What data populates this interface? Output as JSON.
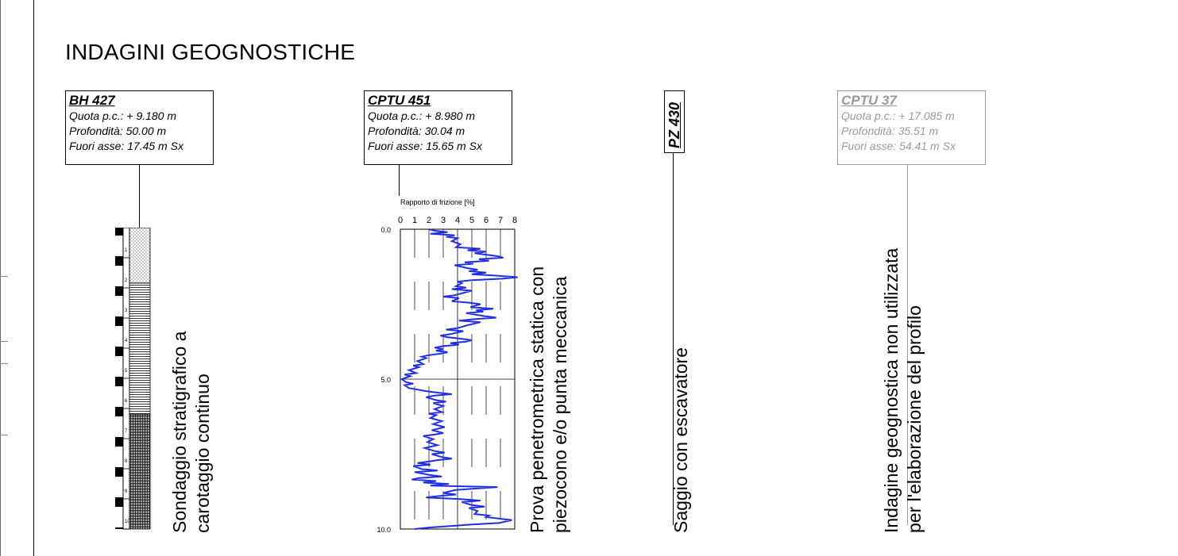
{
  "title": "INDAGINI GEOGNOSTICHE",
  "investigations": [
    {
      "id": "BH 427",
      "quota": "Quota p.c.: + 9.180 m",
      "profondita": "Profondità: 50.00 m",
      "fuori_asse": "Fuori asse: 17.45 m Sx",
      "description": [
        "Sondaggio stratigrafico a",
        "carotaggio continuo"
      ],
      "core_ticks": [
        "1",
        "2",
        "3",
        "4",
        "5",
        "6",
        "7",
        "8",
        "9",
        "10"
      ],
      "enabled": true
    },
    {
      "id": "CPTU 451",
      "quota": "Quota p.c.: + 8.980 m",
      "profondita": "Profondità: 30.04 m",
      "fuori_asse": "Fuori asse: 15.65 m Sx",
      "description": [
        "Prova penetrometrica statica con",
        "piezocono e/o punta meccanica"
      ],
      "enabled": true
    },
    {
      "id": "PZ 430",
      "description": [
        "Saggio con escavatore"
      ],
      "enabled": true
    },
    {
      "id": "CPTU 37",
      "quota": "Quota p.c.: + 17.085 m",
      "profondita": "Profondità: 35.51 m",
      "fuori_asse": "Fuori asse: 54.41 m Sx",
      "description": [
        "Indagine geognostica non utilizzata",
        "per l'elaborazione del profilo"
      ],
      "enabled": false,
      "color": "#9a9a9a"
    }
  ],
  "chart_data": {
    "type": "line",
    "title": "Rapporto di frizione [%]",
    "xlabel": "Rapporto di frizione [%]",
    "ylabel": "",
    "x_ticks": [
      "0",
      "1",
      "2",
      "3",
      "4",
      "5",
      "6",
      "7",
      "8"
    ],
    "y_ticks": [
      "0.0",
      "5.0",
      "10.0"
    ],
    "xlim": [
      0,
      8
    ],
    "ylim": [
      0,
      10
    ],
    "y_inverted": true,
    "line_color": "#1f2ee6",
    "series": [
      {
        "points": [
          [
            2.0,
            0.0
          ],
          [
            2.4,
            0.05
          ],
          [
            3.3,
            0.1
          ],
          [
            2.1,
            0.15
          ],
          [
            3.8,
            0.2
          ],
          [
            3.2,
            0.25
          ],
          [
            4.0,
            0.3
          ],
          [
            3.6,
            0.4
          ],
          [
            4.2,
            0.5
          ],
          [
            3.9,
            0.6
          ],
          [
            5.6,
            0.65
          ],
          [
            4.7,
            0.7
          ],
          [
            6.0,
            0.75
          ],
          [
            5.2,
            0.8
          ],
          [
            6.8,
            0.9
          ],
          [
            7.2,
            0.95
          ],
          [
            5.5,
            1.0
          ],
          [
            6.2,
            1.05
          ],
          [
            4.5,
            1.1
          ],
          [
            5.1,
            1.15
          ],
          [
            3.8,
            1.2
          ],
          [
            4.7,
            1.3
          ],
          [
            5.4,
            1.35
          ],
          [
            4.8,
            1.4
          ],
          [
            6.0,
            1.45
          ],
          [
            5.0,
            1.5
          ],
          [
            6.8,
            1.55
          ],
          [
            8.2,
            1.6
          ],
          [
            7.1,
            1.65
          ],
          [
            5.0,
            1.7
          ],
          [
            4.0,
            1.75
          ],
          [
            4.3,
            1.8
          ],
          [
            3.9,
            1.9
          ],
          [
            4.6,
            1.95
          ],
          [
            3.6,
            2.0
          ],
          [
            5.0,
            2.05
          ],
          [
            4.2,
            2.15
          ],
          [
            3.8,
            2.2
          ],
          [
            3.0,
            2.25
          ],
          [
            4.1,
            2.3
          ],
          [
            3.6,
            2.4
          ],
          [
            4.8,
            2.45
          ],
          [
            5.6,
            2.5
          ],
          [
            4.9,
            2.6
          ],
          [
            6.5,
            2.65
          ],
          [
            5.3,
            2.7
          ],
          [
            5.8,
            2.75
          ],
          [
            4.6,
            2.8
          ],
          [
            5.9,
            2.9
          ],
          [
            6.7,
            2.95
          ],
          [
            5.2,
            3.0
          ],
          [
            4.1,
            3.05
          ],
          [
            5.6,
            3.1
          ],
          [
            4.7,
            3.2
          ],
          [
            4.0,
            3.3
          ],
          [
            3.2,
            3.35
          ],
          [
            4.4,
            3.4
          ],
          [
            3.5,
            3.5
          ],
          [
            2.8,
            3.55
          ],
          [
            3.3,
            3.6
          ],
          [
            4.2,
            3.65
          ],
          [
            5.0,
            3.7
          ],
          [
            4.6,
            3.75
          ],
          [
            3.5,
            3.8
          ],
          [
            4.1,
            3.85
          ],
          [
            3.0,
            3.9
          ],
          [
            2.4,
            3.95
          ],
          [
            3.0,
            4.0
          ],
          [
            2.5,
            4.05
          ],
          [
            3.3,
            4.1
          ],
          [
            2.8,
            4.15
          ],
          [
            2.0,
            4.2
          ],
          [
            1.5,
            4.25
          ],
          [
            1.8,
            4.3
          ],
          [
            1.2,
            4.4
          ],
          [
            1.6,
            4.5
          ],
          [
            0.9,
            4.55
          ],
          [
            1.3,
            4.6
          ],
          [
            0.6,
            4.7
          ],
          [
            1.1,
            4.8
          ],
          [
            0.3,
            4.85
          ],
          [
            0.7,
            4.9
          ],
          [
            0.1,
            5.0
          ],
          [
            0.4,
            5.1
          ],
          [
            0.9,
            5.15
          ],
          [
            0.3,
            5.2
          ],
          [
            0.6,
            5.3
          ],
          [
            1.2,
            5.35
          ],
          [
            1.8,
            5.4
          ],
          [
            2.6,
            5.45
          ],
          [
            3.6,
            5.5
          ],
          [
            2.4,
            5.55
          ],
          [
            1.8,
            5.6
          ],
          [
            2.5,
            5.7
          ],
          [
            3.2,
            5.75
          ],
          [
            2.3,
            5.8
          ],
          [
            3.0,
            5.9
          ],
          [
            2.4,
            6.0
          ],
          [
            2.9,
            6.1
          ],
          [
            2.0,
            6.15
          ],
          [
            2.5,
            6.2
          ],
          [
            2.1,
            6.3
          ],
          [
            2.9,
            6.4
          ],
          [
            2.3,
            6.5
          ],
          [
            3.1,
            6.6
          ],
          [
            2.2,
            6.7
          ],
          [
            3.0,
            6.8
          ],
          [
            2.4,
            6.85
          ],
          [
            1.6,
            6.9
          ],
          [
            2.3,
            7.0
          ],
          [
            1.9,
            7.1
          ],
          [
            2.6,
            7.2
          ],
          [
            1.7,
            7.3
          ],
          [
            2.4,
            7.4
          ],
          [
            3.1,
            7.45
          ],
          [
            2.2,
            7.5
          ],
          [
            2.9,
            7.6
          ],
          [
            3.6,
            7.65
          ],
          [
            2.6,
            7.7
          ],
          [
            2.0,
            7.75
          ],
          [
            1.2,
            7.8
          ],
          [
            2.1,
            7.85
          ],
          [
            0.9,
            7.9
          ],
          [
            1.5,
            8.0
          ],
          [
            2.6,
            8.05
          ],
          [
            1.0,
            8.1
          ],
          [
            2.1,
            8.2
          ],
          [
            2.9,
            8.25
          ],
          [
            1.3,
            8.3
          ],
          [
            0.8,
            8.35
          ],
          [
            2.5,
            8.4
          ],
          [
            1.6,
            8.45
          ],
          [
            3.4,
            8.5
          ],
          [
            2.1,
            8.55
          ],
          [
            6.8,
            8.6
          ],
          [
            5.2,
            8.65
          ],
          [
            3.8,
            8.7
          ],
          [
            3.0,
            8.8
          ],
          [
            3.9,
            8.85
          ],
          [
            2.7,
            8.9
          ],
          [
            1.8,
            8.95
          ],
          [
            4.2,
            9.0
          ],
          [
            5.6,
            9.05
          ],
          [
            4.3,
            9.1
          ],
          [
            5.0,
            9.2
          ],
          [
            5.9,
            9.25
          ],
          [
            4.8,
            9.3
          ],
          [
            5.4,
            9.4
          ],
          [
            5.2,
            9.5
          ],
          [
            6.2,
            9.55
          ],
          [
            6.0,
            9.6
          ],
          [
            7.8,
            9.7
          ],
          [
            6.9,
            9.8
          ],
          [
            5.0,
            9.85
          ],
          [
            3.5,
            9.9
          ],
          [
            2.0,
            9.95
          ],
          [
            1.0,
            10.0
          ]
        ]
      }
    ]
  }
}
